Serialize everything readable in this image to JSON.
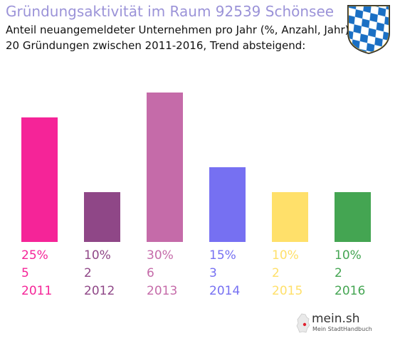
{
  "header": {
    "title": "Gründungsaktivität im Raum 92539 Schönsee",
    "subtitle_line1": "Anteil neuangemeldeter Unternehmen pro Jahr (%, Anzahl, Jahr)",
    "subtitle_line2": "20 Gründungen zwischen 2011-2016, Trend absteigend:"
  },
  "crest": {
    "icon": "bavaria-lozenge-crest-icon",
    "colors": [
      "#1a6fc4",
      "#ffffff",
      "#c9a227"
    ]
  },
  "branding": {
    "name": "mein.sh",
    "tagline": "Mein StadtHandbuch",
    "icon": "germany-map-icon"
  },
  "chart_data": {
    "type": "bar",
    "title": "",
    "categories": [
      "2011",
      "2012",
      "2013",
      "2014",
      "2015",
      "2016"
    ],
    "values": [
      25,
      10,
      30,
      15,
      10,
      10
    ],
    "counts": [
      5,
      2,
      6,
      3,
      2,
      2
    ],
    "percent_labels": [
      "25%",
      "10%",
      "30%",
      "15%",
      "10%",
      "10%"
    ],
    "count_labels": [
      "5",
      "2",
      "6",
      "3",
      "2",
      "2"
    ],
    "colors": [
      "#f52498",
      "#8f4787",
      "#c56ba9",
      "#7670f2",
      "#ffe06a",
      "#44a552"
    ],
    "ylim": [
      0,
      30
    ],
    "grid": false,
    "legend": "none"
  }
}
